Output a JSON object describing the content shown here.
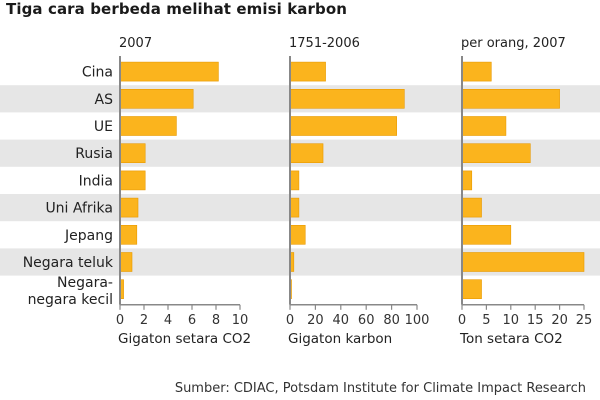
{
  "title": "Tiga cara berbeda melihat emisi karbon",
  "source": "Sumber: CDIAC, Potsdam Institute for Climate Impact Research",
  "colors": {
    "bar": "#FBB41D",
    "bar_edge": "#E89A00",
    "row_shade": "#E6E6E6",
    "axis": "#888888"
  },
  "chart_data": [
    {
      "type": "bar",
      "orientation": "horizontal",
      "title": "2007",
      "xlabel": "Gigaton setara CO2",
      "categories": [
        "Cina",
        "AS",
        "UE",
        "Rusia",
        "India",
        "Uni Afrika",
        "Jepang",
        "Negara teluk",
        "Negara-negara kecil"
      ],
      "values": [
        8.2,
        6.1,
        4.7,
        2.1,
        2.1,
        1.5,
        1.4,
        1.0,
        0.3
      ],
      "xlim": [
        0,
        10
      ],
      "xticks": [
        0,
        2,
        4,
        6,
        8,
        10
      ]
    },
    {
      "type": "bar",
      "orientation": "horizontal",
      "title": "1751-2006",
      "xlabel": "Gigaton karbon",
      "categories": [
        "Cina",
        "AS",
        "UE",
        "Rusia",
        "India",
        "Uni Afrika",
        "Jepang",
        "Negara teluk",
        "Negara-negara kecil"
      ],
      "values": [
        28,
        90,
        84,
        26,
        7,
        7,
        12,
        3,
        1
      ],
      "xlim": [
        0,
        100
      ],
      "xticks": [
        0,
        20,
        40,
        60,
        80,
        100
      ]
    },
    {
      "type": "bar",
      "orientation": "horizontal",
      "title": "per orang, 2007",
      "xlabel": "Ton setara CO2",
      "categories": [
        "Cina",
        "AS",
        "UE",
        "Rusia",
        "India",
        "Uni Afrika",
        "Jepang",
        "Negara teluk",
        "Negara-negara kecil"
      ],
      "values": [
        6,
        20,
        9,
        14,
        2,
        4,
        10,
        25,
        4
      ],
      "xlim": [
        0,
        25
      ],
      "xticks": [
        0,
        5,
        10,
        15,
        20,
        25
      ]
    }
  ],
  "category_labels": [
    [
      "Cina"
    ],
    [
      "AS"
    ],
    [
      "UE"
    ],
    [
      "Rusia"
    ],
    [
      "India"
    ],
    [
      "Uni Afrika"
    ],
    [
      "Jepang"
    ],
    [
      "Negara teluk"
    ],
    [
      "Negara-",
      "negara kecil"
    ]
  ]
}
